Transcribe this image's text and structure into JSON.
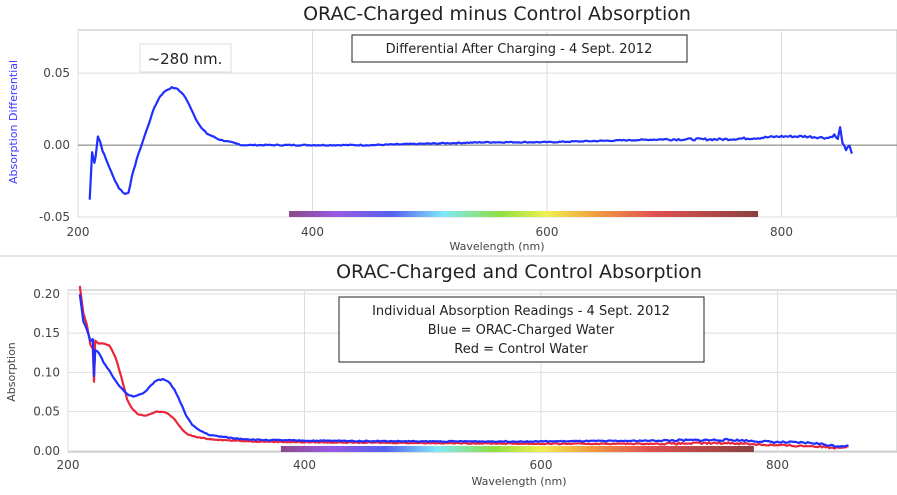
{
  "chart_data": [
    {
      "type": "line",
      "title": "ORAC-Charged minus Control Absorption",
      "xlabel": "Wavelength (nm)",
      "ylabel": "Absorption Differential",
      "xlim": [
        200,
        900
      ],
      "ylim": [
        -0.05,
        0.08
      ],
      "xticks": [
        200,
        400,
        600,
        800
      ],
      "yticks": [
        -0.05,
        0.0,
        0.05
      ],
      "ytick_labels": [
        "-0.05",
        "0.00",
        "0.05"
      ],
      "grid": true,
      "annotation": "~280 nm.",
      "legend_box": [
        "Differential After Charging - 4 Sept. 2012"
      ],
      "spectrum_band_nm": [
        380,
        780
      ],
      "series": [
        {
          "name": "Differential",
          "color": "#1f2fff",
          "x": [
            210,
            212,
            214,
            215,
            217,
            219,
            221,
            225,
            230,
            235,
            240,
            243,
            246,
            250,
            255,
            260,
            265,
            270,
            275,
            280,
            285,
            290,
            295,
            300,
            305,
            310,
            320,
            330,
            340,
            360,
            400,
            450,
            500,
            550,
            600,
            650,
            700,
            750,
            780,
            800,
            820,
            840,
            845,
            848,
            850,
            852,
            855,
            858,
            860
          ],
          "y": [
            -0.038,
            -0.005,
            -0.012,
            -0.008,
            0.006,
            0.002,
            -0.004,
            -0.012,
            -0.022,
            -0.03,
            -0.034,
            -0.033,
            -0.022,
            -0.01,
            0.002,
            0.014,
            0.026,
            0.034,
            0.038,
            0.04,
            0.039,
            0.035,
            0.028,
            0.019,
            0.012,
            0.008,
            0.004,
            0.002,
            0.0,
            0.0,
            0.0,
            0.0,
            0.001,
            0.002,
            0.002,
            0.003,
            0.004,
            0.004,
            0.005,
            0.006,
            0.006,
            0.005,
            0.007,
            0.004,
            0.012,
            0.002,
            -0.004,
            0.0,
            -0.006
          ]
        }
      ]
    },
    {
      "type": "line",
      "title": "ORAC-Charged and Control Absorption",
      "xlabel": "Wavelength (nm)",
      "ylabel": "Absorption",
      "xlim": [
        200,
        900
      ],
      "ylim": [
        0.0,
        0.205
      ],
      "xticks": [
        200,
        400,
        600,
        800
      ],
      "yticks": [
        0.0,
        0.05,
        0.1,
        0.15,
        0.2
      ],
      "ytick_labels": [
        "0.00",
        "0.05",
        "0.10",
        "0.15",
        "0.20"
      ],
      "grid": true,
      "legend_box": [
        "Individual Absorption Readings - 4 Sept. 2012",
        "Blue = ORAC-Charged Water",
        "Red = Control Water"
      ],
      "spectrum_band_nm": [
        380,
        780
      ],
      "series": [
        {
          "name": "Control Water",
          "color": "#e8283a",
          "x": [
            210,
            213,
            216,
            219,
            221,
            222,
            223,
            226,
            230,
            235,
            240,
            245,
            250,
            255,
            260,
            265,
            270,
            275,
            280,
            285,
            290,
            295,
            300,
            305,
            310,
            320,
            340,
            360,
            400,
            500,
            600,
            700,
            760,
            800,
            830,
            850,
            860
          ],
          "y": [
            0.21,
            0.175,
            0.16,
            0.135,
            0.13,
            0.088,
            0.14,
            0.137,
            0.137,
            0.134,
            0.12,
            0.095,
            0.065,
            0.052,
            0.046,
            0.045,
            0.047,
            0.05,
            0.05,
            0.047,
            0.04,
            0.03,
            0.022,
            0.019,
            0.017,
            0.015,
            0.013,
            0.012,
            0.011,
            0.01,
            0.009,
            0.009,
            0.01,
            0.007,
            0.006,
            0.004,
            0.006
          ]
        },
        {
          "name": "ORAC-Charged Water",
          "color": "#1f2fff",
          "x": [
            210,
            213,
            216,
            219,
            221,
            222,
            223,
            226,
            230,
            235,
            240,
            245,
            250,
            255,
            260,
            265,
            270,
            275,
            280,
            285,
            290,
            295,
            300,
            305,
            310,
            320,
            340,
            360,
            400,
            500,
            600,
            700,
            760,
            800,
            830,
            850,
            860
          ],
          "y": [
            0.2,
            0.165,
            0.155,
            0.14,
            0.142,
            0.095,
            0.128,
            0.125,
            0.113,
            0.102,
            0.09,
            0.08,
            0.072,
            0.069,
            0.071,
            0.075,
            0.083,
            0.09,
            0.091,
            0.088,
            0.078,
            0.062,
            0.045,
            0.033,
            0.027,
            0.02,
            0.016,
            0.014,
            0.013,
            0.012,
            0.012,
            0.013,
            0.014,
            0.011,
            0.01,
            0.006,
            0.007
          ]
        }
      ]
    }
  ]
}
